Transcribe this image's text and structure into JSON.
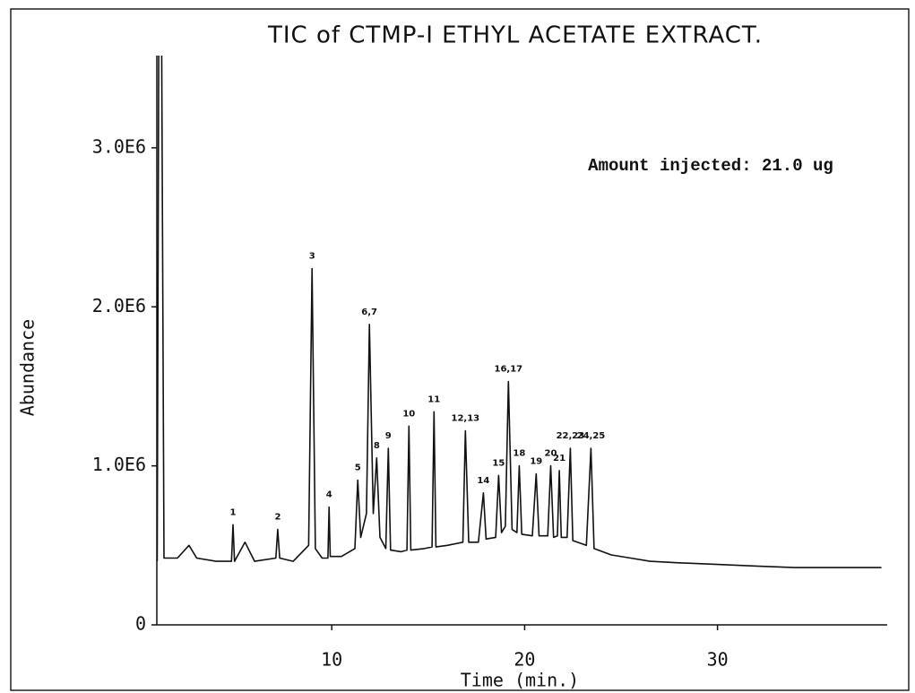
{
  "chart_data": {
    "type": "line",
    "title": "TIC of CTMP-I ETHYL ACETATE EXTRACT.",
    "note": "Amount injected: 21.0 ug",
    "xlabel": "Time (min.)",
    "ylabel": "Abundance",
    "xlim": [
      0.93,
      38.8
    ],
    "ylim": [
      0,
      3580000
    ],
    "xticks": [
      10,
      20,
      30
    ],
    "yticks": [
      0,
      {
        "value": 1000000,
        "label": "1.0E6"
      },
      {
        "value": 2000000,
        "label": "2.0E6"
      },
      {
        "value": 3000000,
        "label": "3.0E6"
      }
    ],
    "color": "#111111",
    "x": [
      0.95,
      1.05,
      1.15,
      1.3,
      2,
      2.6,
      3,
      4,
      4.8,
      4.88,
      4.96,
      5.5,
      6,
      7.1,
      7.2,
      7.3,
      8,
      8.8,
      8.98,
      9.15,
      9.5,
      9.8,
      9.86,
      9.92,
      10.5,
      11.2,
      11.35,
      11.5,
      11.8,
      11.95,
      12.15,
      12.33,
      12.5,
      12.8,
      12.93,
      13.05,
      13.6,
      13.9,
      14.0,
      14.1,
      14.8,
      15.2,
      15.3,
      15.4,
      16,
      16.8,
      16.93,
      17.1,
      17.6,
      17.86,
      18.0,
      18.5,
      18.65,
      18.8,
      19.0,
      19.16,
      19.35,
      19.6,
      19.72,
      19.85,
      20.4,
      20.6,
      20.75,
      21.2,
      21.35,
      21.5,
      21.7,
      21.8,
      21.9,
      22.2,
      22.37,
      22.5,
      23.2,
      23.44,
      23.6,
      24.5,
      25.5,
      26.5,
      28,
      30,
      32,
      34,
      36,
      38.5
    ],
    "values": [
      400000,
      4500000,
      4500000,
      420000,
      420000,
      500000,
      420000,
      400000,
      400000,
      630000,
      400000,
      520000,
      400000,
      420000,
      600000,
      420000,
      400000,
      500000,
      2240000,
      480000,
      420000,
      420000,
      740000,
      430000,
      430000,
      480000,
      910000,
      550000,
      700000,
      1890000,
      700000,
      1050000,
      550000,
      480000,
      1110000,
      470000,
      460000,
      470000,
      1250000,
      470000,
      480000,
      490000,
      1340000,
      490000,
      500000,
      520000,
      1220000,
      520000,
      520000,
      830000,
      540000,
      550000,
      940000,
      580000,
      620000,
      1530000,
      600000,
      580000,
      1000000,
      570000,
      560000,
      950000,
      560000,
      560000,
      1000000,
      550000,
      560000,
      970000,
      550000,
      550000,
      1110000,
      530000,
      500000,
      1110000,
      480000,
      440000,
      420000,
      400000,
      390000,
      380000,
      370000,
      360000,
      360000,
      360000
    ],
    "annotations": [
      {
        "text": "1",
        "x": 4.88,
        "y": 630000
      },
      {
        "text": "2",
        "x": 7.2,
        "y": 600000
      },
      {
        "text": "3",
        "x": 8.98,
        "y": 2240000
      },
      {
        "text": "4",
        "x": 9.86,
        "y": 740000
      },
      {
        "text": "5",
        "x": 11.35,
        "y": 910000
      },
      {
        "text": "6,7",
        "x": 11.95,
        "y": 1890000
      },
      {
        "text": "8",
        "x": 12.33,
        "y": 1050000
      },
      {
        "text": "9",
        "x": 12.93,
        "y": 1110000
      },
      {
        "text": "10",
        "x": 14.0,
        "y": 1250000
      },
      {
        "text": "11",
        "x": 15.3,
        "y": 1340000
      },
      {
        "text": "12,13",
        "x": 16.93,
        "y": 1220000
      },
      {
        "text": "14",
        "x": 17.86,
        "y": 830000
      },
      {
        "text": "15",
        "x": 18.65,
        "y": 940000
      },
      {
        "text": "16,17",
        "x": 19.16,
        "y": 1530000
      },
      {
        "text": "18",
        "x": 19.72,
        "y": 1000000
      },
      {
        "text": "19",
        "x": 20.6,
        "y": 950000
      },
      {
        "text": "20",
        "x": 21.35,
        "y": 1000000
      },
      {
        "text": "21",
        "x": 21.8,
        "y": 970000
      },
      {
        "text": "22,23",
        "x": 22.37,
        "y": 1110000
      },
      {
        "text": "24,25",
        "x": 23.44,
        "y": 1110000
      }
    ]
  }
}
